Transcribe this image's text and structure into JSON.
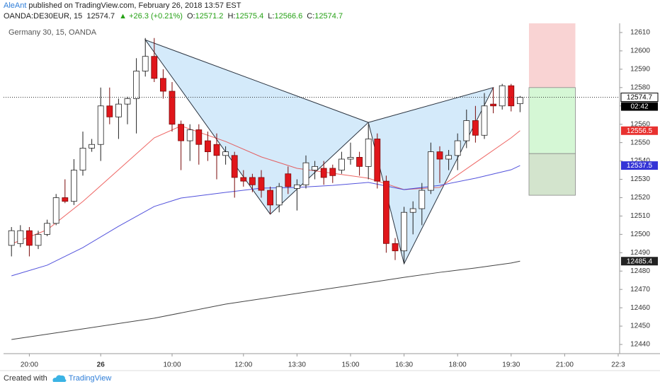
{
  "header": {
    "author": "AleAnt",
    "published": "published on TradingView.com, February 26, 2018 13:57 EST",
    "symbol": "OANDA:DE30EUR, 15",
    "change": "▲ +26.3 (+0.21%)",
    "labels": [
      "O:",
      "H:",
      "L:",
      "C:"
    ]
  },
  "chart_data": {
    "type": "candlestick",
    "title": "Germany 30, 15, OANDA",
    "open": [
      12494,
      12495,
      12502,
      12494,
      12500,
      12506,
      12520,
      12518,
      12535,
      12547,
      12549,
      12570,
      12564,
      12571,
      12574,
      12589,
      12597,
      12585,
      12578,
      12560,
      12551,
      12557,
      12551,
      12549,
      12543,
      12543,
      12531,
      12531,
      12531,
      12524,
      12516,
      12533,
      12525,
      12527,
      12535,
      12536,
      12536,
      12535,
      12541,
      12542,
      12537,
      12552,
      12529,
      12495,
      12491,
      12512,
      12514,
      12524,
      12545,
      12541,
      12543,
      12551,
      12562,
      12554,
      12571,
      12570,
      12581,
      12571.2
    ],
    "high": [
      12504,
      12505,
      12504,
      12502,
      12508,
      12522,
      12530,
      12541,
      12556,
      12552,
      12580,
      12580,
      12574,
      12575,
      12596,
      12607,
      12607,
      12590,
      12583,
      12562,
      12560,
      12560,
      12556,
      12555,
      12548,
      12545,
      12535,
      12533,
      12535,
      12526,
      12528,
      12537,
      12530,
      12543,
      12540,
      12540,
      12538,
      12545,
      12550,
      12545,
      12560,
      12555,
      12532,
      12498,
      12515,
      12518,
      12528,
      12550,
      12548,
      12546,
      12555,
      12568,
      12570,
      12577,
      12580,
      12582,
      12582,
      12575.4
    ],
    "low": [
      12488,
      12493,
      12488,
      12492,
      12499,
      12505,
      12517,
      12516,
      12532,
      12545,
      12540,
      12560,
      12552,
      12560,
      12555,
      12586,
      12583,
      12574,
      12556,
      12535,
      12540,
      12538,
      12540,
      12530,
      12538,
      12520,
      12526,
      12523,
      12520,
      12511,
      12512,
      12522,
      12513,
      12525,
      12530,
      12527,
      12528,
      12533,
      12538,
      12532,
      12530,
      12525,
      12490,
      12486,
      12484,
      12500,
      12505,
      12522,
      12528,
      12535,
      12535,
      12547,
      12550,
      12552,
      12566,
      12568,
      12567,
      12566.6
    ],
    "close": [
      12502,
      12502,
      12494,
      12500,
      12506,
      12520,
      12518,
      12535,
      12547,
      12549,
      12570,
      12564,
      12571,
      12574,
      12589,
      12597,
      12585,
      12578,
      12560,
      12551,
      12557,
      12549,
      12545,
      12543,
      12545,
      12531,
      12529,
      12527,
      12524,
      12516,
      12526,
      12526,
      12527,
      12539,
      12537,
      12531,
      12532,
      12541,
      12542,
      12537,
      12552,
      12529,
      12495,
      12491,
      12512,
      12514,
      12524,
      12545,
      12541,
      12543,
      12551,
      12562,
      12554,
      12570,
      12570,
      12581,
      12570,
      12574.7
    ],
    "up_color": "#ffffff",
    "down_color": "#e0161b",
    "series": [
      {
        "color": "#e8312f",
        "x": [
          0,
          4,
          8,
          12,
          16,
          19,
          24,
          28,
          32,
          36,
          40,
          44,
          48,
          52,
          56,
          57
        ],
        "values": [
          12494.8,
          12502.5,
          12517.9,
          12535.2,
          12552.6,
          12559.1,
          12550.6,
          12542.2,
          12536,
          12533.3,
          12530.6,
          12524.4,
          12525.6,
          12539.1,
          12552.6,
          12556.5
        ]
      },
      {
        "color": "#3434d6",
        "x": [
          0,
          4,
          8,
          12,
          16,
          19,
          24,
          28,
          32,
          36,
          40,
          44,
          48,
          52,
          56,
          57
        ],
        "values": [
          12477.4,
          12483.2,
          12492.8,
          12504.4,
          12515.2,
          12519.8,
          12522.9,
          12525.2,
          12525.6,
          12526.7,
          12528.3,
          12524.4,
          12526.7,
          12530.6,
          12535.2,
          12537.5
        ]
      },
      {
        "color": "#222222",
        "x": [
          0,
          8,
          16,
          24,
          32,
          40,
          44,
          48,
          52,
          56,
          57
        ],
        "values": [
          12442.7,
          12448.5,
          12454.3,
          12462,
          12467.8,
          12473.6,
          12476.6,
          12479.3,
          12481.7,
          12484.4,
          12485.4
        ]
      }
    ],
    "pattern_x": [
      15,
      29,
      40,
      44,
      54
    ],
    "pattern_values": [
      12606,
      12511,
      12561,
      12484,
      12580
    ],
    "pattern_color": "#cfe8fa",
    "position": {
      "x": [
        58,
        63.2
      ],
      "levels": [
        12580,
        12544,
        12521.3
      ],
      "colors": [
        "#f9d3d3",
        "#d5f7d5",
        "#d3e4cd"
      ]
    },
    "countdown": "02:42",
    "xlim": [
      -0.89,
      68.16
    ],
    "xticks": [
      {
        "value": 2,
        "label": "20:00"
      },
      {
        "value": 10,
        "label": "26"
      },
      {
        "value": 18,
        "label": "10:00"
      },
      {
        "value": 26,
        "label": "12:00"
      },
      {
        "value": 32,
        "label": "13:30"
      },
      {
        "value": 38,
        "label": "15:00"
      },
      {
        "value": 44,
        "label": "16:30"
      },
      {
        "value": 50,
        "label": "18:00"
      },
      {
        "value": 56,
        "label": "19:30"
      },
      {
        "value": 62,
        "label": "21:00"
      },
      {
        "value": 68,
        "label": "22:3"
      }
    ],
    "ylim": [
      12435,
      12615
    ],
    "yticks": [
      12440,
      12450,
      12460,
      12470,
      12480,
      12490,
      12500,
      12510,
      12520,
      12530,
      12540,
      12550,
      12560,
      12570,
      12580,
      12590,
      12600,
      12610
    ],
    "grid": false
  },
  "footer": {
    "text": "Created with",
    "brand": "TradingView"
  }
}
